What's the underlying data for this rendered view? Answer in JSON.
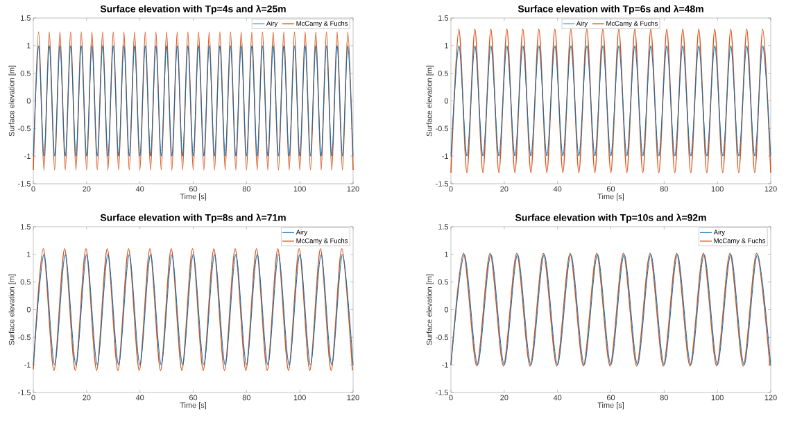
{
  "chart_data": [
    {
      "type": "line",
      "title": "Surface elevation with Tp=4s and λ=25m",
      "xlabel": "Time [s]",
      "ylabel": "Surface elevation [m]",
      "xlim": [
        0,
        120
      ],
      "ylim": [
        -1.5,
        1.5
      ],
      "xticks": [
        0,
        20,
        40,
        60,
        80,
        100,
        120
      ],
      "yticks": [
        -1.5,
        -1,
        -0.5,
        0,
        0.5,
        1,
        1.5
      ],
      "grid": false,
      "legend": "top right",
      "x": [
        0,
        2,
        4,
        6,
        8,
        10,
        12,
        14,
        16,
        18,
        20,
        22,
        24,
        26,
        28,
        30,
        32,
        34,
        36,
        38,
        40,
        42,
        44,
        46,
        48,
        50,
        52,
        54,
        56,
        58,
        60,
        62,
        64,
        66,
        68,
        70,
        72,
        74,
        76,
        78,
        80,
        82,
        84,
        86,
        88,
        90,
        92,
        94,
        96,
        98,
        100,
        102,
        104,
        106,
        108,
        110,
        112,
        114,
        116,
        118,
        120
      ],
      "series": [
        {
          "name": "Airy",
          "color": "#0072bd",
          "values": [
            -1,
            1,
            -1,
            1,
            -1,
            1,
            -1,
            1,
            -1,
            1,
            -1,
            1,
            -1,
            1,
            -1,
            1,
            -1,
            1,
            -1,
            1,
            -1,
            1,
            -1,
            1,
            -1,
            1,
            -1,
            1,
            -1,
            1,
            -1,
            1,
            -1,
            1,
            -1,
            1,
            -1,
            1,
            -1,
            1,
            -1,
            1,
            -1,
            1,
            -1,
            1,
            -1,
            1,
            -1,
            1,
            -1,
            1,
            -1,
            1,
            -1,
            1,
            -1,
            1,
            -1,
            1,
            -1
          ]
        },
        {
          "name": "McCamy & Fuchs",
          "color": "#d95319",
          "values": [
            -1.25,
            1.25,
            -1.25,
            1.25,
            -1.25,
            1.25,
            -1.25,
            1.25,
            -1.25,
            1.25,
            -1.25,
            1.25,
            -1.25,
            1.25,
            -1.25,
            1.25,
            -1.25,
            1.25,
            -1.25,
            1.25,
            -1.25,
            1.25,
            -1.25,
            1.25,
            -1.25,
            1.25,
            -1.25,
            1.25,
            -1.25,
            1.25,
            -1.25,
            1.25,
            -1.25,
            1.25,
            -1.25,
            1.25,
            -1.25,
            1.25,
            -1.25,
            1.25,
            -1.25,
            1.25,
            -1.25,
            1.25,
            -1.25,
            1.25,
            -1.25,
            1.25,
            -1.25,
            1.25,
            -1.25,
            1.25,
            -1.25,
            1.25,
            -1.25,
            1.25,
            -1.25,
            1.25,
            -1.25,
            1.25,
            -1.25
          ]
        }
      ]
    },
    {
      "type": "line",
      "title": "Surface elevation with Tp=6s and λ=48m",
      "xlabel": "Time [s]",
      "ylabel": "Surface elevation [m]",
      "xlim": [
        0,
        120
      ],
      "ylim": [
        -1.5,
        1.5
      ],
      "xticks": [
        0,
        20,
        40,
        60,
        80,
        100,
        120
      ],
      "yticks": [
        -1.5,
        -1,
        -0.5,
        0,
        0.5,
        1,
        1.5
      ],
      "grid": false,
      "legend": "top",
      "x": [
        0,
        3,
        6,
        9,
        12,
        15,
        18,
        21,
        24,
        27,
        30,
        33,
        36,
        39,
        42,
        45,
        48,
        51,
        54,
        57,
        60,
        63,
        66,
        69,
        72,
        75,
        78,
        81,
        84,
        87,
        90,
        93,
        96,
        99,
        102,
        105,
        108,
        111,
        114,
        117,
        120
      ],
      "series": [
        {
          "name": "Airy",
          "color": "#0072bd",
          "values": [
            -1,
            1,
            -1,
            1,
            -1,
            1,
            -1,
            1,
            -1,
            1,
            -1,
            1,
            -1,
            1,
            -1,
            1,
            -1,
            1,
            -1,
            1,
            -1,
            1,
            -1,
            1,
            -1,
            1,
            -1,
            1,
            -1,
            1,
            -1,
            1,
            -1,
            1,
            -1,
            1,
            -1,
            1,
            -1,
            1,
            -1
          ]
        },
        {
          "name": "McCamy & Fuchs",
          "color": "#d95319",
          "values": [
            -1.3,
            1.3,
            -1.3,
            1.3,
            -1.3,
            1.3,
            -1.3,
            1.3,
            -1.3,
            1.3,
            -1.3,
            1.3,
            -1.3,
            1.3,
            -1.3,
            1.3,
            -1.3,
            1.3,
            -1.3,
            1.3,
            -1.3,
            1.3,
            -1.3,
            1.3,
            -1.3,
            1.3,
            -1.3,
            1.3,
            -1.3,
            1.3,
            -1.3,
            1.3,
            -1.3,
            1.3,
            -1.3,
            1.3,
            -1.3,
            1.3,
            -1.3,
            1.3,
            -1.3
          ]
        }
      ]
    },
    {
      "type": "line",
      "title": "Surface elevation with Tp=8s and λ=71m",
      "xlabel": "Time [s]",
      "ylabel": "Surface elevation [m]",
      "xlim": [
        0,
        120
      ],
      "ylim": [
        -1.5,
        1.5
      ],
      "xticks": [
        0,
        20,
        40,
        60,
        80,
        100,
        120
      ],
      "yticks": [
        -1.5,
        -1,
        -0.5,
        0,
        0.5,
        1,
        1.5
      ],
      "grid": false,
      "legend": "top right",
      "x": [
        0,
        4,
        8,
        12,
        16,
        20,
        24,
        28,
        32,
        36,
        40,
        44,
        48,
        52,
        56,
        60,
        64,
        68,
        72,
        76,
        80,
        84,
        88,
        92,
        96,
        100,
        104,
        108,
        112,
        116,
        120
      ],
      "series": [
        {
          "name": "Airy",
          "color": "#0072bd",
          "values": [
            -1,
            1,
            -1,
            1,
            -1,
            1,
            -1,
            1,
            -1,
            1,
            -1,
            1,
            -1,
            1,
            -1,
            1,
            -1,
            1,
            -1,
            1,
            -1,
            1,
            -1,
            1,
            -1,
            1,
            -1,
            1,
            -1,
            1,
            -1
          ]
        },
        {
          "name": "McCamy & Fuchs",
          "color": "#d95319",
          "x": [
            0,
            3.75,
            7.75,
            11.75,
            15.75,
            19.75,
            23.75,
            27.75,
            31.75,
            35.75,
            39.75,
            43.75,
            47.75,
            51.75,
            55.75,
            59.75,
            63.75,
            67.75,
            71.75,
            75.75,
            79.75,
            83.75,
            87.75,
            91.75,
            95.75,
            99.75,
            103.75,
            107.75,
            111.75,
            115.75,
            119.75
          ],
          "values": [
            -1.08,
            1.1,
            -1.1,
            1.1,
            -1.1,
            1.1,
            -1.1,
            1.1,
            -1.1,
            1.1,
            -1.1,
            1.1,
            -1.1,
            1.1,
            -1.1,
            1.1,
            -1.1,
            1.1,
            -1.1,
            1.1,
            -1.1,
            1.1,
            -1.1,
            1.1,
            -1.1,
            1.1,
            -1.1,
            1.1,
            -1.1,
            1.1,
            -1.1
          ]
        }
      ]
    },
    {
      "type": "line",
      "title": "Surface elevation with Tp=10s and λ=92m",
      "xlabel": "Time [s]",
      "ylabel": "Surface elevation [m]",
      "xlim": [
        0,
        120
      ],
      "ylim": [
        -1.5,
        1.5
      ],
      "xticks": [
        0,
        20,
        40,
        60,
        80,
        100,
        120
      ],
      "yticks": [
        -1.5,
        -1,
        -0.5,
        0,
        0.5,
        1,
        1.5
      ],
      "grid": false,
      "legend": "top right",
      "x": [
        0,
        5,
        10,
        15,
        20,
        25,
        30,
        35,
        40,
        45,
        50,
        55,
        60,
        65,
        70,
        75,
        80,
        85,
        90,
        95,
        100,
        105,
        110,
        115,
        120
      ],
      "series": [
        {
          "name": "Airy",
          "color": "#0072bd",
          "values": [
            -1,
            1,
            -1,
            1,
            -1,
            1,
            -1,
            1,
            -1,
            1,
            -1,
            1,
            -1,
            1,
            -1,
            1,
            -1,
            1,
            -1,
            1,
            -1,
            1,
            -1,
            1,
            -1
          ]
        },
        {
          "name": "McCamy & Fuchs",
          "color": "#d95319",
          "x": [
            0,
            4.7,
            9.7,
            14.7,
            19.7,
            24.7,
            29.7,
            34.7,
            39.7,
            44.7,
            49.7,
            54.7,
            59.7,
            64.7,
            69.7,
            74.7,
            79.7,
            84.7,
            89.7,
            94.7,
            99.7,
            104.7,
            109.7,
            114.7,
            119.7
          ],
          "values": [
            -1,
            1.02,
            -1.02,
            1.02,
            -1.02,
            1.02,
            -1.02,
            1.02,
            -1.02,
            1.02,
            -1.02,
            1.02,
            -1.02,
            1.02,
            -1.02,
            1.02,
            -1.02,
            1.02,
            -1.02,
            1.02,
            -1.02,
            1.02,
            -1.02,
            1.02,
            -1.02
          ]
        }
      ]
    }
  ]
}
